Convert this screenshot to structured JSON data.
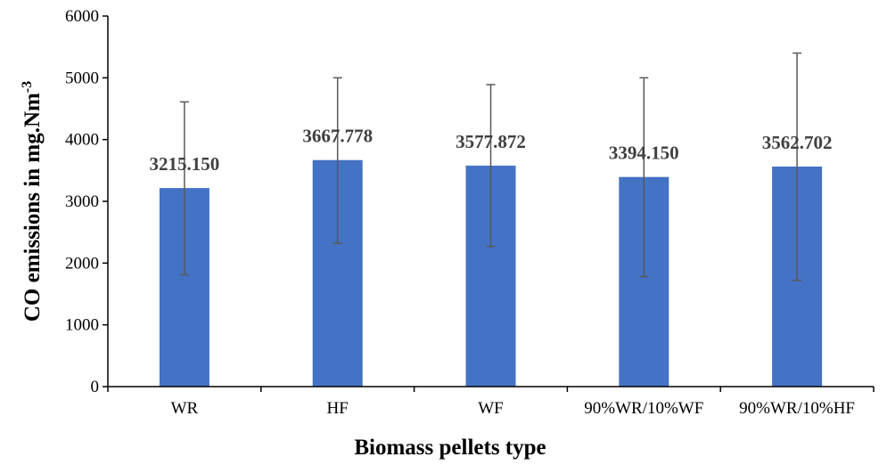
{
  "chart_data": {
    "type": "bar",
    "categories": [
      "WR",
      "HF",
      "WF",
      "90%WR/10%WF",
      "90%WR/10%HF"
    ],
    "values": [
      3215.15,
      3667.778,
      3577.872,
      3394.15,
      3562.702
    ],
    "data_labels": [
      "3215.150",
      "3667.778",
      "3577.872",
      "3394.150",
      "3562.702"
    ],
    "error_low": [
      1810,
      2320,
      2270,
      1780,
      1720
    ],
    "error_high": [
      4610,
      5000,
      4890,
      5000,
      5400
    ],
    "ylabel": "CO emissions in mg.Nm",
    "ylabel_superscript": "-3",
    "xlabel": "Biomass pellets type",
    "ylim": [
      0,
      6000
    ],
    "yticks": [
      0,
      1000,
      2000,
      3000,
      4000,
      5000,
      6000
    ],
    "ytick_labels": [
      "0",
      "1000",
      "2000",
      "3000",
      "4000",
      "5000",
      "6000"
    ],
    "grid": false,
    "legend": "none",
    "colors": {
      "bar": "#4472C4",
      "error_bar": "#595959",
      "axis": "#000000",
      "data_label": "#404040"
    }
  }
}
